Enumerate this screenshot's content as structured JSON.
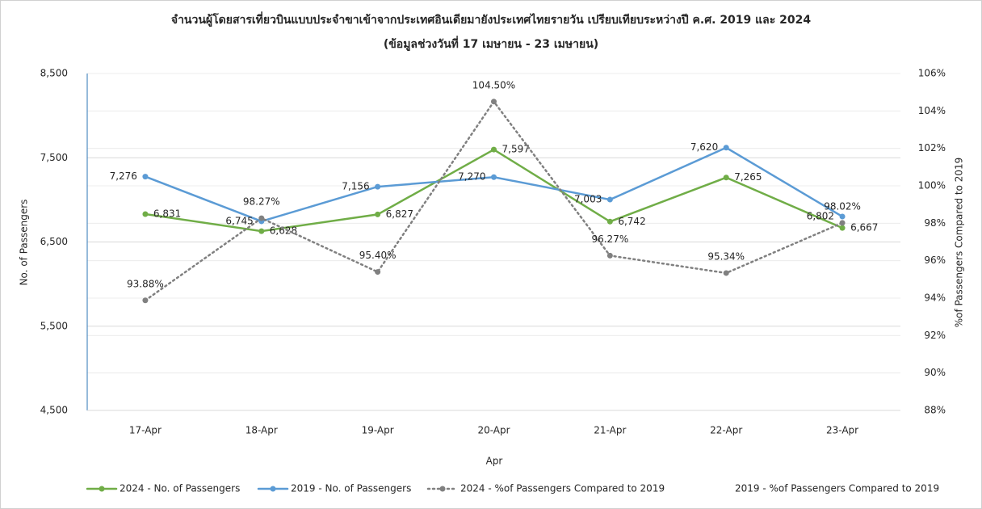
{
  "chart_data": {
    "type": "line",
    "title": "จำนวนผู้โดยสารเที่ยวบินแบบประจำขาเข้าจากประเทศอินเดียมายังประเทศไทยรายวัน เปรียบเทียบระหว่างปี ค.ศ. 2019 และ 2024",
    "subtitle": "(ข้อมูลช่วงวันที่ 17 เมษายน - 23 เมษายน)",
    "x_label": "Apr",
    "y_label": "No. of Passengers",
    "y2_label": "%of Passengers Compared to 2019",
    "categories": [
      "17-Apr",
      "18-Apr",
      "19-Apr",
      "20-Apr",
      "21-Apr",
      "22-Apr",
      "23-Apr"
    ],
    "ylim": [
      4500,
      8500
    ],
    "yticks": [
      {
        "value": 4500,
        "label": "4,500"
      },
      {
        "value": 5500,
        "label": "5,500"
      },
      {
        "value": 6500,
        "label": "6,500"
      },
      {
        "value": 7500,
        "label": "7,500"
      },
      {
        "value": 8500,
        "label": "8,500"
      }
    ],
    "y2lim": [
      88,
      106
    ],
    "y2ticks": [
      {
        "value": 88,
        "label": "88%"
      },
      {
        "value": 90,
        "label": "90%"
      },
      {
        "value": 92,
        "label": "92%"
      },
      {
        "value": 94,
        "label": "94%"
      },
      {
        "value": 96,
        "label": "96%"
      },
      {
        "value": 98,
        "label": "98%"
      },
      {
        "value": 100,
        "label": "100%"
      },
      {
        "value": 102,
        "label": "102%"
      },
      {
        "value": 104,
        "label": "104%"
      },
      {
        "value": 106,
        "label": "106%"
      }
    ],
    "grid": true,
    "legend": "bottom",
    "series": [
      {
        "name": "2024 - No. of Passengers",
        "color": "#70ad47",
        "values": [
          6831,
          6628,
          6827,
          7597,
          6742,
          7265,
          6667
        ],
        "value_labels": [
          "6,831",
          "6,628",
          "6,827",
          "7,597",
          "6,742",
          "7,265",
          "6,667"
        ]
      },
      {
        "name": "2019 - No. of Passengers",
        "color": "#5b9bd5",
        "values": [
          7276,
          6745,
          7156,
          7270,
          7003,
          7620,
          6802
        ],
        "value_labels": [
          "7,276",
          "6,745",
          "7,156",
          "7,270",
          "7,003",
          "7,620",
          "6,802"
        ]
      },
      {
        "name": "2024 - %of Passengers Compared to 2019",
        "color": "#808080",
        "axis": "y2",
        "dotted": true,
        "values": [
          93.88,
          98.27,
          95.4,
          104.5,
          96.27,
          95.34,
          98.02
        ],
        "value_labels": [
          "93.88%",
          "98.27%",
          "95.40%",
          "104.50%",
          "96.27%",
          "95.34%",
          "98.02%"
        ]
      },
      {
        "name": "2019 - %of Passengers Compared to 2019",
        "axis": "y2",
        "values": [
          null,
          null,
          null,
          null,
          null,
          null,
          null
        ]
      }
    ]
  }
}
